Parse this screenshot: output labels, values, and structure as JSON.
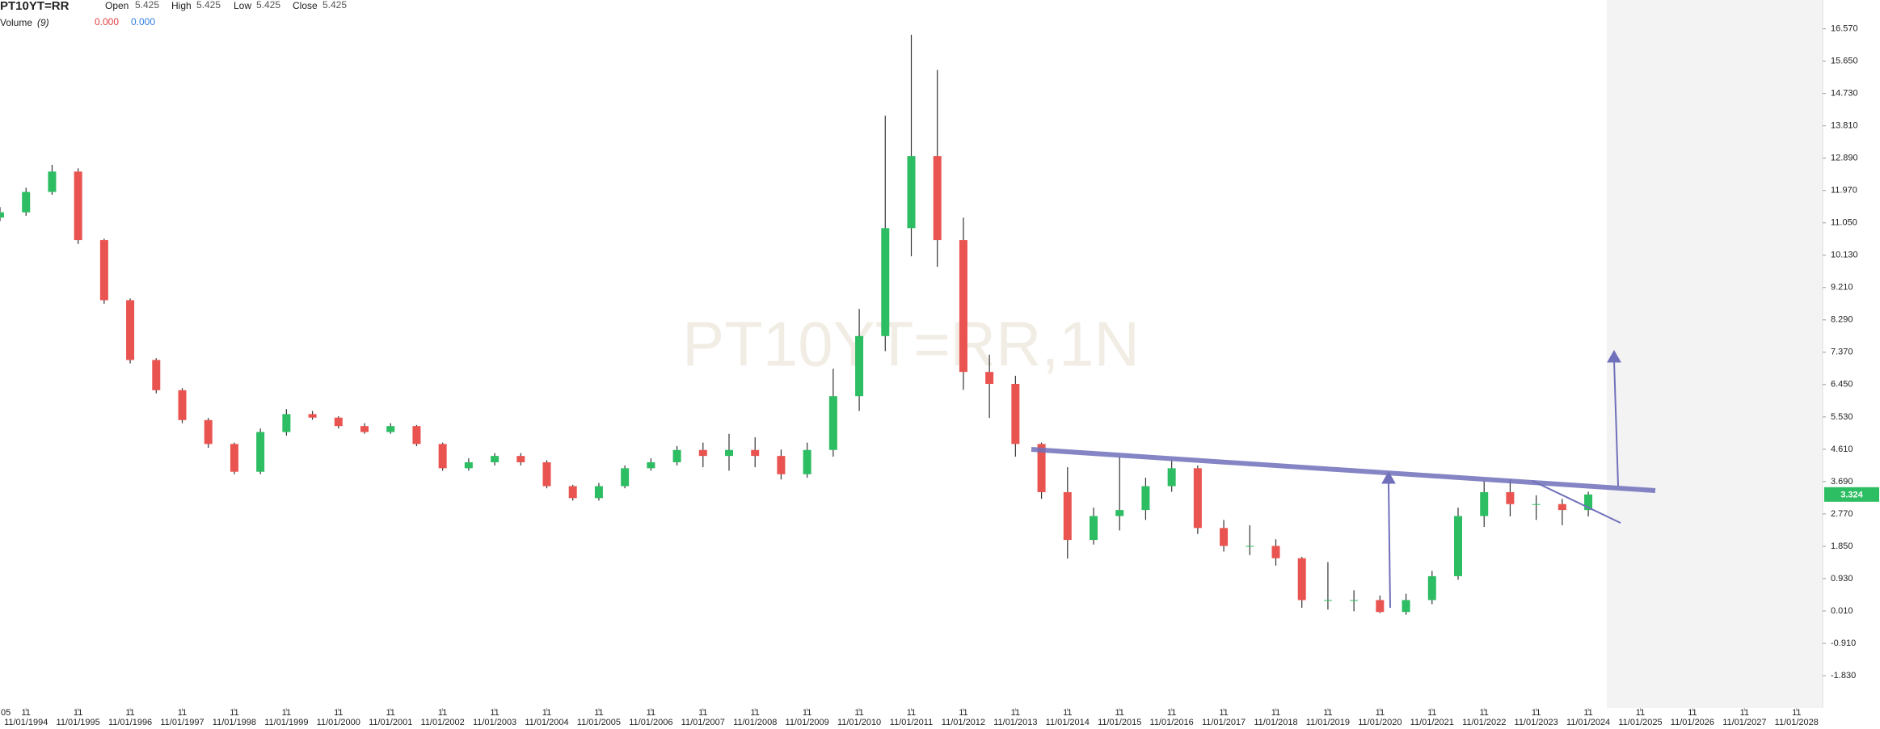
{
  "chart_data": {
    "type": "candlestick",
    "header": {
      "symbol": "PT10YT=RR",
      "open_label": "Open",
      "open": 5.425,
      "high_label": "High",
      "high": 5.425,
      "low_label": "Low",
      "low": 5.425,
      "close_label": "Close",
      "close": 5.425,
      "volume_label": "Volume",
      "volume_period": "(9)",
      "volume_value_1": {
        "value": 0,
        "label": "0.000"
      },
      "volume_value_2": {
        "value": 0,
        "label": "0.000"
      }
    },
    "watermark": "PT10YT=RR,1N",
    "x": [
      "05/01/1994",
      "11/01/1994",
      "05/01/1995",
      "11/01/1995",
      "05/01/1996",
      "11/01/1996",
      "05/01/1997",
      "11/01/1997",
      "05/01/1998",
      "11/01/1998",
      "05/01/1999",
      "11/01/1999",
      "05/01/2000",
      "11/01/2000",
      "05/01/2001",
      "11/01/2001",
      "05/01/2002",
      "11/01/2002",
      "05/01/2003",
      "11/01/2003",
      "05/01/2004",
      "11/01/2004",
      "05/01/2005",
      "11/01/2005",
      "05/01/2006",
      "11/01/2006",
      "05/01/2007",
      "11/01/2007",
      "05/01/2008",
      "11/01/2008",
      "05/01/2009",
      "11/01/2009",
      "05/01/2010",
      "11/01/2010",
      "05/01/2011",
      "11/01/2011",
      "05/01/2012",
      "11/01/2012",
      "05/01/2013",
      "11/01/2013",
      "05/01/2014",
      "11/01/2014",
      "05/01/2015",
      "11/01/2015",
      "05/01/2016",
      "11/01/2016",
      "05/01/2017",
      "11/01/2017",
      "05/01/2018",
      "11/01/2018",
      "05/01/2019",
      "11/01/2019",
      "05/01/2020",
      "11/01/2020",
      "05/01/2021",
      "11/01/2021",
      "05/01/2022",
      "11/01/2022",
      "05/01/2023",
      "11/01/2023",
      "05/01/2024",
      "11/01/2024"
    ],
    "open": [
      11.2,
      11.35,
      11.93,
      12.51,
      10.56,
      8.85,
      7.15,
      6.29,
      5.44,
      4.76,
      3.97,
      5.1,
      5.61,
      5.51,
      5.27,
      5.1,
      5.27,
      4.76,
      4.07,
      4.24,
      4.42,
      4.24,
      3.56,
      3.22,
      3.56,
      4.07,
      4.24,
      4.59,
      4.42,
      4.59,
      4.42,
      3.9,
      4.59,
      6.12,
      7.83,
      10.9,
      12.95,
      10.56,
      6.81,
      6.47,
      4.76,
      3.39,
      2.03,
      2.71,
      2.88,
      3.56,
      4.07,
      2.37,
      1.86,
      1.86,
      1.51,
      0.32,
      0.32,
      0.32,
      -0.02,
      0.32,
      1.0,
      2.71,
      3.39,
      3.05,
      3.05,
      2.88
    ],
    "high": [
      11.5,
      12.05,
      12.7,
      12.6,
      10.6,
      8.9,
      7.2,
      6.35,
      5.5,
      4.8,
      5.2,
      5.75,
      5.7,
      5.55,
      5.35,
      5.35,
      5.3,
      4.8,
      4.35,
      4.5,
      4.5,
      4.3,
      3.6,
      3.65,
      4.15,
      4.35,
      4.7,
      4.8,
      5.05,
      4.95,
      4.6,
      4.8,
      6.9,
      8.6,
      14.1,
      16.4,
      15.4,
      11.2,
      7.3,
      6.7,
      4.8,
      4.1,
      2.95,
      4.4,
      3.8,
      4.3,
      4.15,
      2.6,
      2.45,
      2.05,
      1.55,
      1.4,
      0.6,
      0.45,
      0.5,
      1.15,
      2.95,
      3.7,
      3.75,
      3.3,
      3.2,
      3.4
    ],
    "low": [
      11.1,
      11.25,
      11.85,
      10.45,
      8.75,
      7.05,
      6.2,
      5.35,
      4.65,
      3.9,
      3.9,
      5.0,
      5.45,
      5.2,
      5.05,
      5.05,
      4.7,
      4.0,
      4.0,
      4.15,
      4.15,
      3.5,
      3.15,
      3.15,
      3.5,
      4.0,
      4.15,
      4.1,
      4.0,
      4.1,
      3.75,
      3.8,
      4.4,
      5.7,
      7.4,
      10.1,
      9.8,
      6.3,
      5.5,
      4.4,
      3.2,
      1.5,
      1.9,
      2.3,
      2.6,
      3.4,
      2.2,
      1.7,
      1.6,
      1.3,
      0.1,
      0.05,
      0.0,
      -0.05,
      -0.1,
      0.2,
      0.9,
      2.4,
      2.7,
      2.6,
      2.45,
      2.7
    ],
    "close": [
      11.35,
      11.93,
      12.51,
      10.56,
      8.85,
      7.15,
      6.29,
      5.44,
      4.76,
      3.97,
      5.1,
      5.61,
      5.51,
      5.27,
      5.1,
      5.27,
      4.76,
      4.07,
      4.24,
      4.42,
      4.24,
      3.56,
      3.22,
      3.56,
      4.07,
      4.24,
      4.59,
      4.42,
      4.59,
      4.42,
      3.9,
      4.59,
      6.12,
      7.83,
      10.9,
      12.95,
      10.56,
      6.81,
      6.47,
      4.76,
      3.39,
      2.03,
      2.71,
      2.88,
      3.56,
      4.07,
      2.37,
      1.86,
      1.86,
      1.51,
      0.32,
      0.32,
      0.32,
      -0.02,
      0.32,
      1.0,
      2.71,
      3.39,
      3.05,
      3.05,
      2.88,
      3.324
    ],
    "up_color": "#2dbd62",
    "down_color": "#ea5450",
    "wick_color": "#333333",
    "xlim": [
      "05/01/1994",
      "05/01/2029"
    ],
    "x_start_label": "05",
    "xtick_month_label": "11",
    "xticks": [
      "11/01/1994",
      "11/01/1995",
      "11/01/1996",
      "11/01/1997",
      "11/01/1998",
      "11/01/1999",
      "11/01/2000",
      "11/01/2001",
      "11/01/2002",
      "11/01/2003",
      "11/01/2004",
      "11/01/2005",
      "11/01/2006",
      "11/01/2007",
      "11/01/2008",
      "11/01/2009",
      "11/01/2010",
      "11/01/2011",
      "11/01/2012",
      "11/01/2013",
      "11/01/2014",
      "11/01/2015",
      "11/01/2016",
      "11/01/2017",
      "11/01/2018",
      "11/01/2019",
      "11/01/2020",
      "11/01/2021",
      "11/01/2022",
      "11/01/2023",
      "11/01/2024",
      "11/01/2025",
      "11/01/2026",
      "11/01/2027",
      "11/01/2028"
    ],
    "ylim": [
      -2.75,
      17.39
    ],
    "yticks": [
      {
        "value": 16.57,
        "label": "16.570"
      },
      {
        "value": 15.65,
        "label": "15.650"
      },
      {
        "value": 14.73,
        "label": "14.730"
      },
      {
        "value": 13.81,
        "label": "13.810"
      },
      {
        "value": 12.89,
        "label": "12.890"
      },
      {
        "value": 11.97,
        "label": "11.970"
      },
      {
        "value": 11.05,
        "label": "11.050"
      },
      {
        "value": 10.13,
        "label": "10.130"
      },
      {
        "value": 9.21,
        "label": "9.210"
      },
      {
        "value": 8.29,
        "label": "8.290"
      },
      {
        "value": 7.37,
        "label": "7.370"
      },
      {
        "value": 6.45,
        "label": "6.450"
      },
      {
        "value": 5.53,
        "label": "5.530"
      },
      {
        "value": 4.61,
        "label": "4.610"
      },
      {
        "value": 3.69,
        "label": "3.690"
      },
      {
        "value": 2.77,
        "label": "2.770"
      },
      {
        "value": 1.85,
        "label": "1.850"
      },
      {
        "value": 0.93,
        "label": "0.930"
      },
      {
        "value": 0.01,
        "label": "0.010"
      },
      {
        "value": -0.91,
        "label": "-0.910"
      },
      {
        "value": -1.83,
        "label": "-1.830"
      }
    ],
    "grid": false
  }
}
